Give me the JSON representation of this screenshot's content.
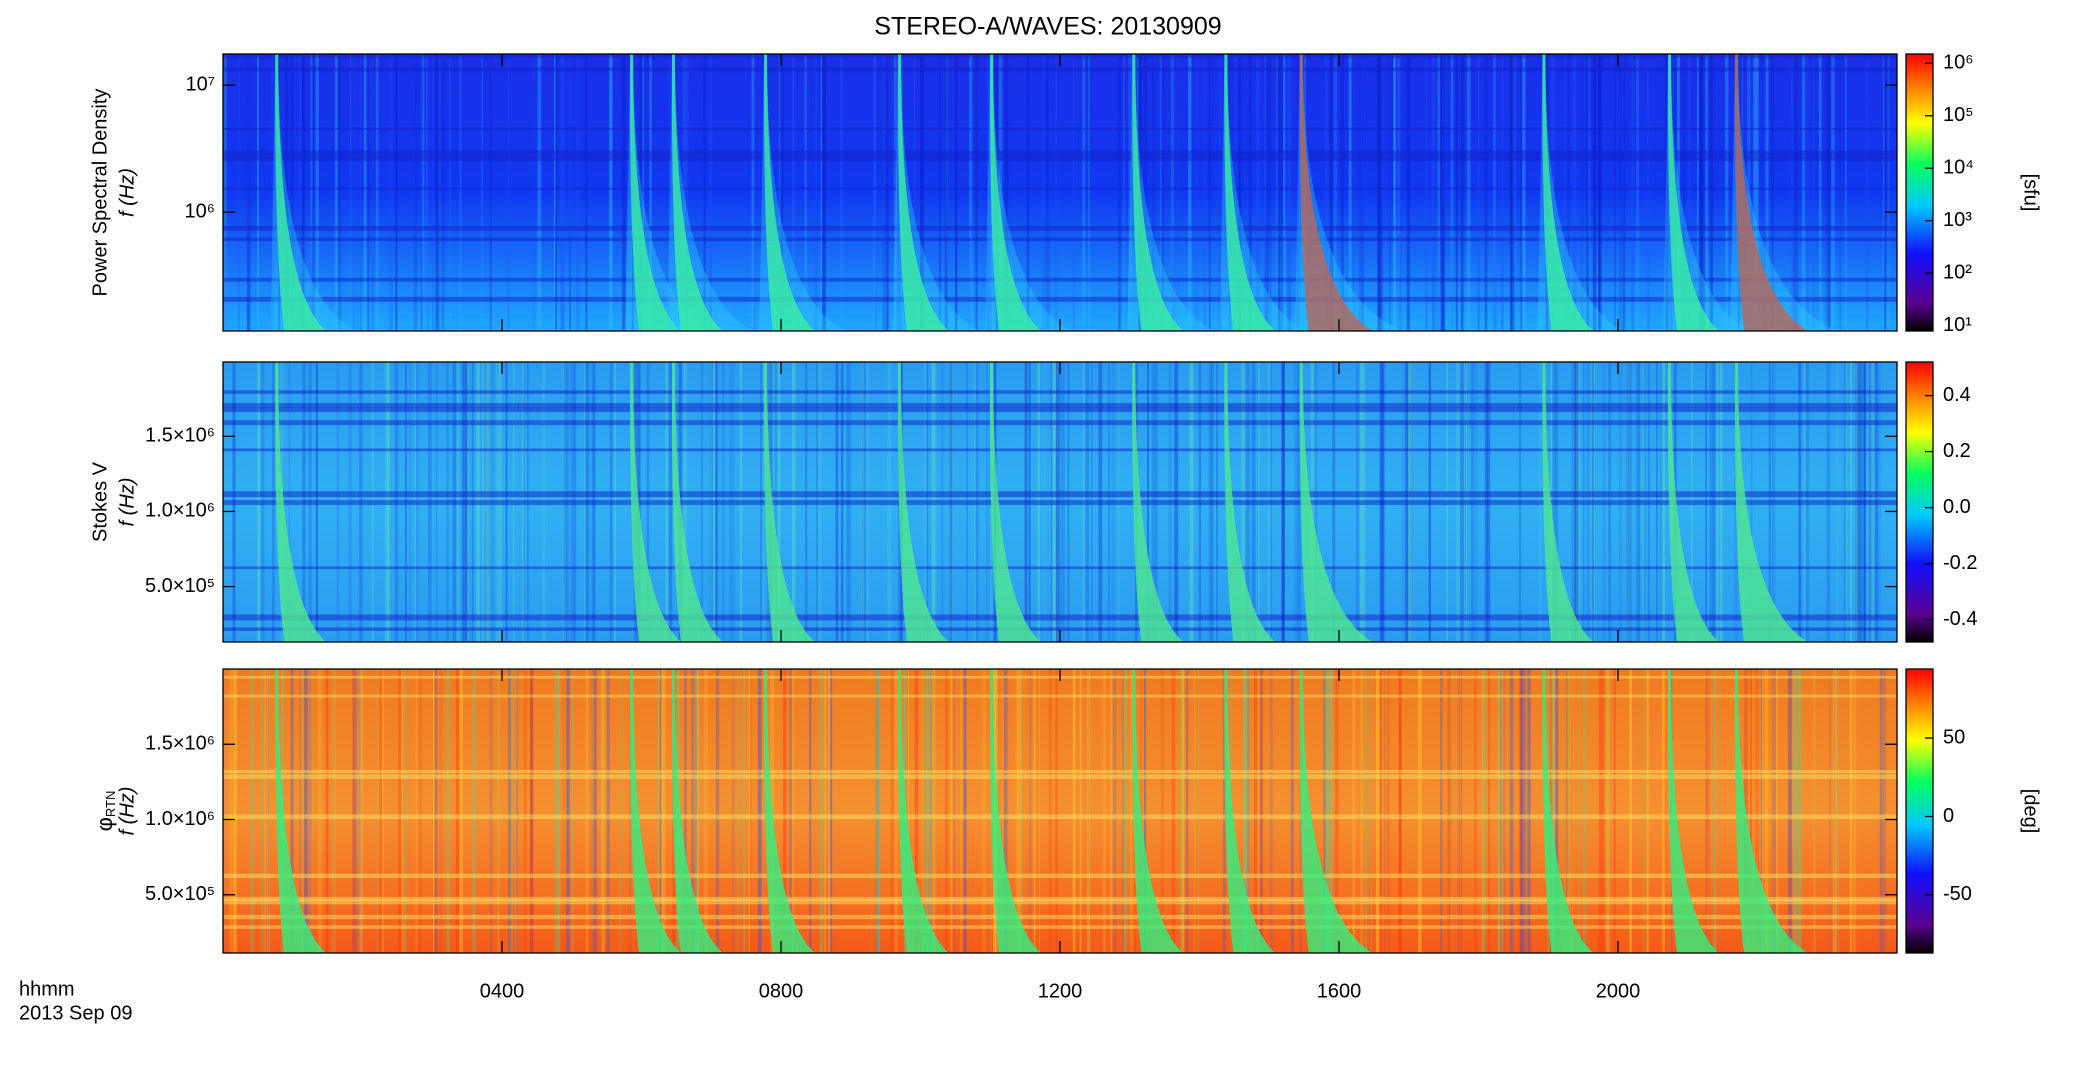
{
  "chart_data": [
    {
      "type": "heatmap",
      "title": "STEREO-A/WAVES: 20130909",
      "ylabel": "Power Spectral Density",
      "ylabel2": "f (Hz)",
      "log_y": true,
      "xlim": [
        0,
        24
      ],
      "ylim": [
        116000,
        17600000
      ],
      "yticks": [
        {
          "value": 1000000,
          "label": "10⁶"
        },
        {
          "value": 10000000,
          "label": "10⁷"
        }
      ],
      "colorbar": {
        "log": true,
        "colormap": "rainbow",
        "lim": [
          7.9,
          1500000
        ],
        "label": "[sfu]",
        "ticks": [
          {
            "value": 10,
            "label": "10¹"
          },
          {
            "value": 100,
            "label": "10²"
          },
          {
            "value": 1000,
            "label": "10³"
          },
          {
            "value": 10000,
            "label": "10⁴"
          },
          {
            "value": 100000,
            "label": "10⁵"
          },
          {
            "value": 1000000,
            "label": "10⁶"
          }
        ]
      }
    },
    {
      "type": "heatmap",
      "ylabel": "Stokes V",
      "ylabel2": "f (Hz)",
      "log_y": false,
      "xlim": [
        0,
        24
      ],
      "ylim": [
        131000,
        1995000
      ],
      "yticks": [
        {
          "value": 500000,
          "label": "5.0×10⁵"
        },
        {
          "value": 1000000,
          "label": "1.0×10⁶"
        },
        {
          "value": 1500000,
          "label": "1.5×10⁶"
        }
      ],
      "colorbar": {
        "log": false,
        "colormap": "rainbow",
        "lim": [
          -0.48,
          0.52
        ],
        "ticks": [
          -0.4,
          -0.2,
          {
            "value": 0,
            "label": "0.0"
          },
          0.2,
          0.4
        ]
      }
    },
    {
      "type": "heatmap",
      "ylabel": "φ",
      "ylabel_subscript": "RTN",
      "ylabel2": "f (Hz)",
      "log_y": false,
      "xlim": [
        0,
        24
      ],
      "ylim": [
        113000,
        2000000
      ],
      "yticks": [
        {
          "value": 500000,
          "label": "5.0×10⁵"
        },
        {
          "value": 1000000,
          "label": "1.0×10⁶"
        },
        {
          "value": 1500000,
          "label": "1.5×10⁶"
        }
      ],
      "colorbar": {
        "log": false,
        "colormap": "rainbow",
        "lim": [
          -87,
          94
        ],
        "label": "[deg]",
        "ticks": [
          -50,
          0,
          50
        ]
      },
      "xlabel": "hhmm",
      "xlabel2": "2013 Sep 09",
      "xticks": [
        {
          "value": 4,
          "label": "0400"
        },
        {
          "value": 8,
          "label": "0800"
        },
        {
          "value": 12,
          "label": "1200"
        },
        {
          "value": 16,
          "label": "1600"
        },
        {
          "value": 20,
          "label": "2000"
        }
      ]
    }
  ]
}
